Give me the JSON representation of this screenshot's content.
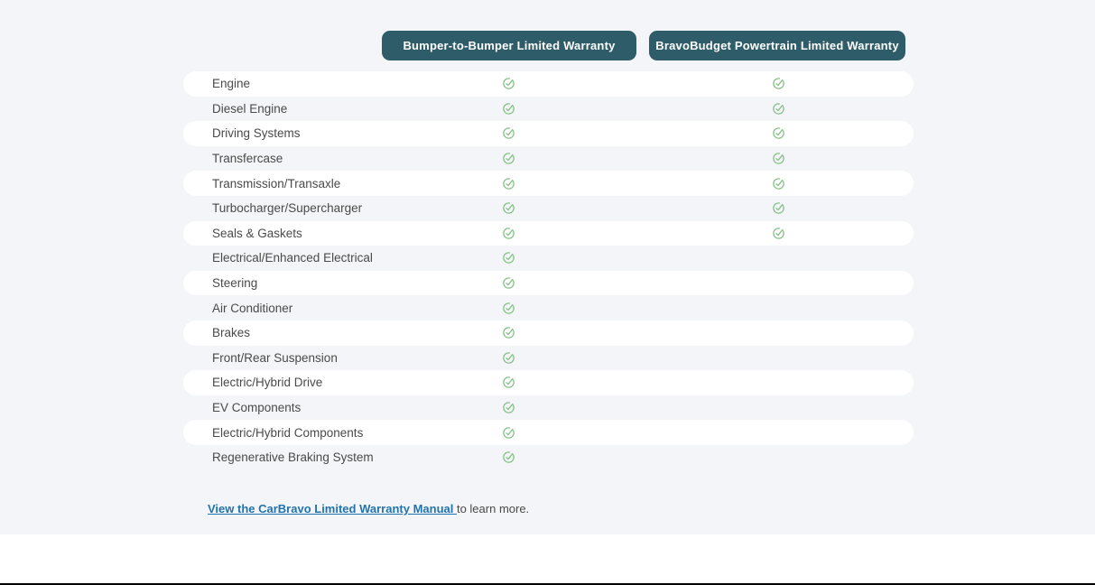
{
  "page": {
    "section_background": "#f4f5f8",
    "row_highlight": "#ffffff",
    "accent_teal": "#2e5d69",
    "check_green": "#85c287",
    "link_blue": "#2173ae",
    "text_gray": "#4a4a4a"
  },
  "columns": [
    {
      "label": "Bumper-to-Bumper Limited Warranty"
    },
    {
      "label": "BravoBudget Powertrain Limited Warranty"
    }
  ],
  "icons": {
    "covered": "check-circle-icon"
  },
  "rows": [
    {
      "label": "Engine",
      "bumper_to_bumper": true,
      "powertrain": true
    },
    {
      "label": "Diesel Engine",
      "bumper_to_bumper": true,
      "powertrain": true
    },
    {
      "label": "Driving Systems",
      "bumper_to_bumper": true,
      "powertrain": true
    },
    {
      "label": "Transfercase",
      "bumper_to_bumper": true,
      "powertrain": true
    },
    {
      "label": "Transmission/Transaxle",
      "bumper_to_bumper": true,
      "powertrain": true
    },
    {
      "label": "Turbocharger/Supercharger",
      "bumper_to_bumper": true,
      "powertrain": true
    },
    {
      "label": "Seals & Gaskets",
      "bumper_to_bumper": true,
      "powertrain": true
    },
    {
      "label": "Electrical/Enhanced Electrical",
      "bumper_to_bumper": true,
      "powertrain": false
    },
    {
      "label": "Steering",
      "bumper_to_bumper": true,
      "powertrain": false
    },
    {
      "label": "Air Conditioner",
      "bumper_to_bumper": true,
      "powertrain": false
    },
    {
      "label": "Brakes",
      "bumper_to_bumper": true,
      "powertrain": false
    },
    {
      "label": "Front/Rear Suspension",
      "bumper_to_bumper": true,
      "powertrain": false
    },
    {
      "label": "Electric/Hybrid Drive",
      "bumper_to_bumper": true,
      "powertrain": false
    },
    {
      "label": "EV Components",
      "bumper_to_bumper": true,
      "powertrain": false
    },
    {
      "label": "Electric/Hybrid Components",
      "bumper_to_bumper": true,
      "powertrain": false
    },
    {
      "label": "Regenerative Braking System",
      "bumper_to_bumper": true,
      "powertrain": false
    }
  ],
  "footer": {
    "link_text": "View the CarBravo Limited Warranty Manual ",
    "suffix_text": "to learn more."
  }
}
